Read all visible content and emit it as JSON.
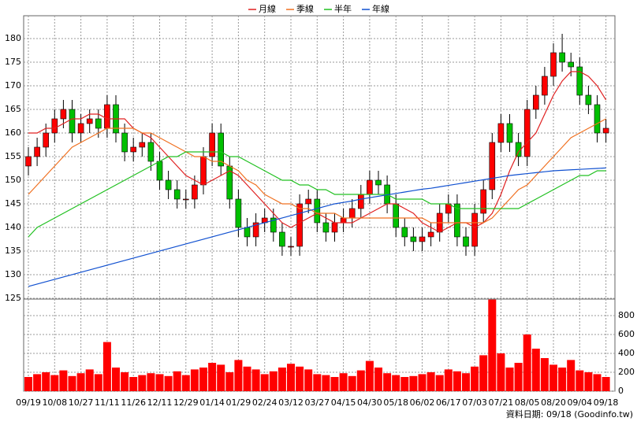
{
  "chart_data": [
    {
      "type": "candlestick",
      "categories": [
        "09/19",
        null,
        null,
        "10/08",
        null,
        null,
        "10/27",
        null,
        null,
        "11/11",
        null,
        null,
        "11/26",
        null,
        null,
        "12/11",
        null,
        null,
        "12/29",
        null,
        null,
        "01/14",
        null,
        null,
        "01/29",
        null,
        null,
        "02/24",
        null,
        null,
        "03/12",
        null,
        null,
        "03/27",
        null,
        null,
        "04/15",
        null,
        null,
        "04/30",
        null,
        null,
        "05/18",
        null,
        null,
        "06/02",
        null,
        null,
        "06/17",
        null,
        null,
        "07/03",
        null,
        null,
        "07/21",
        null,
        null,
        "08/05",
        null,
        null,
        "08/20",
        null,
        null,
        "09/04",
        null,
        null,
        "09/18"
      ],
      "open": [
        153,
        155,
        157,
        160,
        163,
        165,
        160,
        162,
        163,
        161,
        166,
        160,
        156,
        157,
        158,
        154,
        150,
        148,
        146,
        146,
        149,
        155,
        160,
        153,
        146,
        140,
        138,
        141,
        142,
        139,
        136,
        136,
        145,
        146,
        141,
        139,
        141,
        142,
        144,
        147,
        150,
        149,
        145,
        140,
        138,
        137,
        138,
        139,
        143,
        145,
        138,
        136,
        143,
        148,
        158,
        162,
        158,
        155,
        165,
        168,
        172,
        177,
        175,
        174,
        168,
        166,
        160
      ],
      "high": [
        157,
        159,
        162,
        165,
        167,
        167,
        164,
        165,
        165,
        168,
        168,
        162,
        159,
        160,
        160,
        156,
        152,
        150,
        148,
        151,
        157,
        162,
        162,
        155,
        148,
        142,
        143,
        144,
        144,
        141,
        138,
        147,
        148,
        148,
        143,
        143,
        144,
        146,
        149,
        152,
        152,
        151,
        147,
        142,
        140,
        140,
        141,
        145,
        147,
        147,
        140,
        145,
        150,
        160,
        164,
        164,
        160,
        167,
        170,
        174,
        179,
        181,
        177,
        176,
        170,
        168,
        163
      ],
      "low": [
        151,
        153,
        155,
        158,
        161,
        158,
        158,
        160,
        159,
        159,
        158,
        154,
        154,
        155,
        152,
        148,
        146,
        144,
        144,
        144,
        147,
        153,
        151,
        144,
        138,
        136,
        136,
        139,
        137,
        134,
        134,
        134,
        143,
        139,
        137,
        137,
        139,
        140,
        142,
        145,
        147,
        143,
        138,
        136,
        135,
        135,
        136,
        137,
        141,
        136,
        134,
        134,
        141,
        146,
        156,
        156,
        153,
        153,
        163,
        166,
        170,
        173,
        172,
        166,
        164,
        158,
        158
      ],
      "close": [
        155,
        157,
        160,
        163,
        165,
        160,
        162,
        163,
        161,
        166,
        160,
        156,
        157,
        158,
        154,
        150,
        148,
        146,
        146,
        149,
        155,
        160,
        153,
        146,
        140,
        138,
        141,
        142,
        139,
        136,
        136,
        145,
        146,
        141,
        139,
        141,
        142,
        144,
        147,
        150,
        149,
        145,
        140,
        138,
        137,
        138,
        139,
        143,
        145,
        138,
        136,
        143,
        148,
        158,
        162,
        158,
        155,
        165,
        168,
        172,
        177,
        175,
        174,
        168,
        166,
        160,
        161
      ],
      "up_color": "#ff0000",
      "down_color": "#00c000",
      "series": [
        {
          "name": "月線",
          "color": "#e02020",
          "values": [
            160,
            160,
            161,
            161,
            162,
            163,
            163,
            164,
            164,
            163,
            163,
            163,
            161,
            160,
            159,
            157,
            155,
            153,
            151,
            150,
            149,
            150,
            151,
            152,
            151,
            149,
            147,
            145,
            143,
            141,
            140,
            141,
            142,
            143,
            142,
            141,
            141,
            141,
            142,
            143,
            144,
            145,
            145,
            144,
            143,
            141,
            140,
            139,
            140,
            141,
            141,
            140,
            141,
            143,
            147,
            152,
            156,
            158,
            160,
            164,
            168,
            171,
            173,
            173,
            172,
            170,
            167
          ]
        },
        {
          "name": "季線",
          "color": "#f07020",
          "values": [
            147,
            149,
            151,
            153,
            155,
            157,
            158,
            159,
            160,
            161,
            161,
            161,
            161,
            160,
            160,
            159,
            158,
            157,
            156,
            155,
            155,
            154,
            154,
            153,
            152,
            150,
            149,
            147,
            146,
            145,
            145,
            144,
            144,
            143,
            143,
            143,
            142,
            142,
            142,
            142,
            142,
            142,
            142,
            142,
            142,
            142,
            141,
            141,
            141,
            141,
            141,
            141,
            141,
            142,
            144,
            146,
            148,
            149,
            151,
            153,
            155,
            157,
            159,
            160,
            161,
            162,
            163
          ]
        },
        {
          "name": "半年",
          "color": "#20c020",
          "values": [
            138,
            140,
            141,
            142,
            143,
            144,
            145,
            146,
            147,
            148,
            149,
            150,
            151,
            152,
            153,
            154,
            155,
            155,
            156,
            156,
            156,
            156,
            156,
            155,
            155,
            154,
            153,
            152,
            151,
            150,
            150,
            149,
            149,
            148,
            148,
            147,
            147,
            147,
            147,
            147,
            147,
            147,
            146,
            146,
            146,
            146,
            145,
            145,
            145,
            144,
            144,
            144,
            144,
            144,
            144,
            144,
            144,
            145,
            146,
            147,
            148,
            149,
            150,
            151,
            151,
            152,
            152
          ]
        },
        {
          "name": "年線",
          "color": "#1050d0",
          "values": [
            127.5,
            128,
            128.5,
            129,
            129.5,
            130,
            130.5,
            131,
            131.5,
            132,
            132.5,
            133,
            133.5,
            134,
            134.5,
            135,
            135.5,
            136,
            136.5,
            137,
            137.5,
            138,
            138.5,
            139,
            139.5,
            140,
            140.5,
            141,
            141.5,
            142,
            142.5,
            143,
            143.5,
            144,
            144.5,
            145,
            145.3,
            145.6,
            146,
            146.3,
            146.6,
            146.9,
            147.2,
            147.5,
            147.8,
            148.1,
            148.3,
            148.6,
            148.9,
            149.2,
            149.5,
            149.8,
            150.1,
            150.4,
            150.7,
            151,
            151.2,
            151.4,
            151.6,
            151.8,
            152,
            152.1,
            152.2,
            152.3,
            152.4,
            152.5,
            152.6
          ]
        }
      ],
      "ylim": [
        124.83,
        184.83
      ],
      "yticks": [
        125,
        130,
        135,
        140,
        145,
        150,
        155,
        160,
        165,
        170,
        175,
        180
      ],
      "grid": true
    },
    {
      "type": "bar",
      "color": "#ff0000",
      "values": [
        150,
        180,
        200,
        170,
        220,
        160,
        190,
        230,
        180,
        520,
        250,
        200,
        150,
        170,
        190,
        180,
        160,
        210,
        170,
        230,
        250,
        300,
        280,
        200,
        330,
        260,
        230,
        180,
        210,
        250,
        290,
        260,
        230,
        180,
        170,
        150,
        190,
        160,
        220,
        320,
        250,
        190,
        170,
        150,
        160,
        180,
        200,
        170,
        230,
        210,
        190,
        260,
        380,
        970,
        400,
        250,
        300,
        600,
        450,
        350,
        280,
        250,
        330,
        220,
        200,
        180,
        150
      ],
      "ylim": [
        0,
        975
      ],
      "yticks": [
        0,
        200,
        400,
        600,
        800
      ],
      "grid": true
    }
  ],
  "footer": "資料日期: 09/18 (Goodinfo.tw)"
}
